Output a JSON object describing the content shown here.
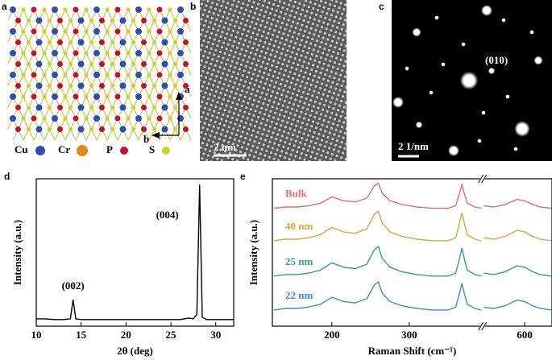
{
  "panels": {
    "a": {
      "label": "a",
      "legend": [
        "Cu",
        "Cr",
        "P",
        "S"
      ],
      "axes": [
        "a",
        "b"
      ]
    },
    "b": {
      "label": "b",
      "scale_bar": "2 nm"
    },
    "c": {
      "label": "c",
      "spot_label": "(010)",
      "scale_bar": "2 1/nm"
    }
  },
  "chart_data": [
    {
      "type": "line",
      "panel_label": "d",
      "x_label": "2θ (deg)",
      "y_label": "Intensity (a.u.)",
      "color": "#000000",
      "x": [
        10,
        11,
        12,
        13,
        13.8,
        14.1,
        14.4,
        15,
        17,
        20,
        23,
        26,
        27,
        27.5,
        27.9,
        28.2,
        28.5,
        29,
        30,
        31,
        32
      ],
      "values": [
        5,
        5,
        4.5,
        4.5,
        5,
        18,
        5,
        4.5,
        4.5,
        4.5,
        4.5,
        4.5,
        5.5,
        5,
        8,
        96,
        6,
        4.5,
        4.5,
        4.5,
        4.5
      ],
      "xlim": [
        10,
        32
      ],
      "ylim": [
        0,
        100
      ],
      "xticks": [
        10,
        15,
        20,
        25,
        30
      ],
      "annotations": [
        {
          "text": "(002)",
          "x": 14.1
        },
        {
          "text": "(004)",
          "x": 28.2
        }
      ]
    },
    {
      "type": "line",
      "panel_label": "e",
      "x_label": "Raman Shift (cm⁻¹)",
      "y_label": "Intensity (a.u.)",
      "x": [
        125,
        140,
        155,
        170,
        185,
        200,
        215,
        230,
        245,
        255,
        260,
        265,
        275,
        290,
        310,
        330,
        350,
        360,
        365,
        368,
        371,
        375,
        385,
        393,
        547,
        560,
        575,
        590,
        600,
        610,
        620,
        635
      ],
      "series": [
        {
          "name": "Bulk",
          "color": "#e06c6c",
          "values": [
            80,
            80.9,
            80.9,
            81.7,
            83.4,
            87.7,
            85.1,
            84.3,
            86.8,
            95.3,
            97,
            90.2,
            85.1,
            82.6,
            80.9,
            80,
            80,
            81.7,
            90.2,
            96.2,
            90.2,
            83.4,
            80.9,
            80,
            81.7,
            80.9,
            82.6,
            86,
            85.1,
            82.6,
            80.9,
            80
          ]
        },
        {
          "name": "40 nm",
          "color": "#d9a53a",
          "values": [
            58,
            59,
            59,
            60,
            62,
            67,
            64,
            63,
            66,
            76,
            78,
            70,
            64,
            61,
            59,
            58,
            58,
            60,
            70,
            77,
            70,
            62,
            59,
            58,
            60,
            59,
            61,
            65,
            64,
            61,
            59,
            58
          ]
        },
        {
          "name": "25 nm",
          "color": "#2aa67a",
          "values": [
            34,
            35,
            35,
            36,
            38,
            43,
            40,
            39,
            42,
            52,
            54,
            46,
            40,
            37,
            35,
            34,
            34,
            36,
            46,
            53,
            46,
            38,
            35,
            34,
            36,
            35,
            37,
            41,
            40,
            37,
            35,
            34
          ]
        },
        {
          "name": "22 nm",
          "color": "#3a8fc8",
          "values": [
            11,
            12,
            12,
            13,
            14.8,
            19.6,
            16.7,
            15.8,
            18.6,
            28.1,
            30,
            22.4,
            16.7,
            13.9,
            12,
            11,
            11,
            12.9,
            22.4,
            29.1,
            22.4,
            14.8,
            12,
            11,
            12.9,
            12,
            13.9,
            17.7,
            16.7,
            13.9,
            12,
            11
          ]
        }
      ],
      "xlim": [
        123,
        635
      ],
      "xbreak": [
        393,
        547
      ],
      "ylim": [
        0,
        100
      ],
      "xticks": [
        200,
        300,
        600
      ]
    }
  ]
}
